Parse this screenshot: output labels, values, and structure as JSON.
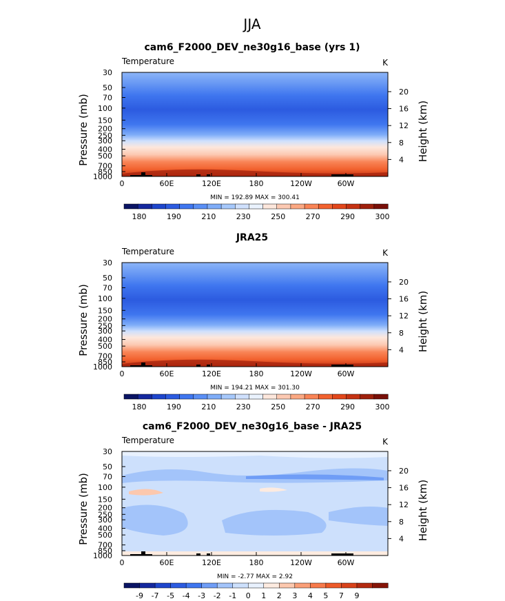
{
  "page_title": "JJA",
  "colors": {
    "abs_palette": [
      "#0a1464",
      "#14289e",
      "#1e46cc",
      "#2c5be0",
      "#3f76ef",
      "#5a8ff5",
      "#7fadf8",
      "#a6c8fb",
      "#cfe0fd",
      "#eaf2fe",
      "#fde7dc",
      "#fcc9b2",
      "#fba882",
      "#f98456",
      "#f2622f",
      "#e2471b",
      "#c53212",
      "#9f200c",
      "#780f08"
    ],
    "diff_palette": [
      "#0a1464",
      "#14289e",
      "#1e46cc",
      "#2c5be0",
      "#3f76ef",
      "#6f9df6",
      "#a3c4fa",
      "#cde0fc",
      "#e8f1fe",
      "#fdebe0",
      "#fcc8ae",
      "#fa9f78",
      "#f77a4b",
      "#ed5a29",
      "#d8421a",
      "#b32a10",
      "#861508"
    ]
  },
  "chart_data": [
    {
      "type": "heatmap",
      "title": "cam6_F2000_DEV_ne30g16_base (yrs 1)",
      "left_label": "Temperature",
      "units": "K",
      "ylabel": "Pressure (mb)",
      "ylabel_right": "Height (km)",
      "x_ticks": [
        "0",
        "60E",
        "120E",
        "180",
        "120W",
        "60W"
      ],
      "y_ticks": [
        "30",
        "50",
        "70",
        "100",
        "150",
        "200",
        "250",
        "300",
        "400",
        "500",
        "700",
        "850",
        "1000"
      ],
      "height_ticks": [
        "20",
        "16",
        "12",
        "8",
        "4"
      ],
      "levels_mb": [
        30,
        50,
        70,
        100,
        150,
        200,
        250,
        300,
        400,
        500,
        700,
        850,
        1000
      ],
      "values_K": [
        222,
        212,
        205,
        198,
        205,
        214,
        224,
        232,
        247,
        258,
        275,
        285,
        293
      ],
      "stats": "MIN = 192.89   MAX = 300.41",
      "colorbar_labels": [
        "180",
        "190",
        "210",
        "230",
        "250",
        "270",
        "290",
        "300"
      ]
    },
    {
      "type": "heatmap",
      "title": "JRA25",
      "left_label": "Temperature",
      "units": "K",
      "ylabel": "Pressure (mb)",
      "ylabel_right": "Height (km)",
      "x_ticks": [
        "0",
        "60E",
        "120E",
        "180",
        "120W",
        "60W"
      ],
      "y_ticks": [
        "30",
        "50",
        "70",
        "100",
        "150",
        "200",
        "250",
        "300",
        "400",
        "500",
        "700",
        "850",
        "1000"
      ],
      "height_ticks": [
        "20",
        "16",
        "12",
        "8",
        "4"
      ],
      "levels_mb": [
        30,
        50,
        70,
        100,
        150,
        200,
        250,
        300,
        400,
        500,
        700,
        850,
        1000
      ],
      "values_K": [
        223,
        213,
        206,
        199,
        206,
        215,
        225,
        233,
        248,
        259,
        276,
        286,
        294
      ],
      "stats": "MIN = 194.21   MAX = 301.30",
      "colorbar_labels": [
        "180",
        "190",
        "210",
        "230",
        "250",
        "270",
        "290",
        "300"
      ]
    },
    {
      "type": "heatmap",
      "title": "cam6_F2000_DEV_ne30g16_base - JRA25",
      "left_label": "Temperature",
      "units": "K",
      "ylabel": "Pressure (mb)",
      "ylabel_right": "Height (km)",
      "x_ticks": [
        "0",
        "60E",
        "120E",
        "180",
        "120W",
        "60W"
      ],
      "y_ticks": [
        "30",
        "50",
        "70",
        "100",
        "150",
        "200",
        "250",
        "300",
        "400",
        "500",
        "700",
        "850",
        "1000"
      ],
      "height_ticks": [
        "20",
        "16",
        "12",
        "8",
        "4"
      ],
      "levels_mb": [
        30,
        50,
        70,
        100,
        150,
        200,
        250,
        300,
        400,
        500,
        700,
        850,
        1000
      ],
      "values_K": [
        -0.8,
        -1.2,
        -1.6,
        -1.0,
        -1.3,
        -1.7,
        -1.5,
        -1.1,
        -1.0,
        -1.2,
        -1.1,
        -0.7,
        -0.5
      ],
      "stats": "MIN =  -2.77   MAX =    2.92",
      "colorbar_labels": [
        "-9",
        "-7",
        "-5",
        "-4",
        "-3",
        "-2",
        "-1",
        "0",
        "1",
        "2",
        "3",
        "4",
        "5",
        "7",
        "9"
      ]
    }
  ]
}
